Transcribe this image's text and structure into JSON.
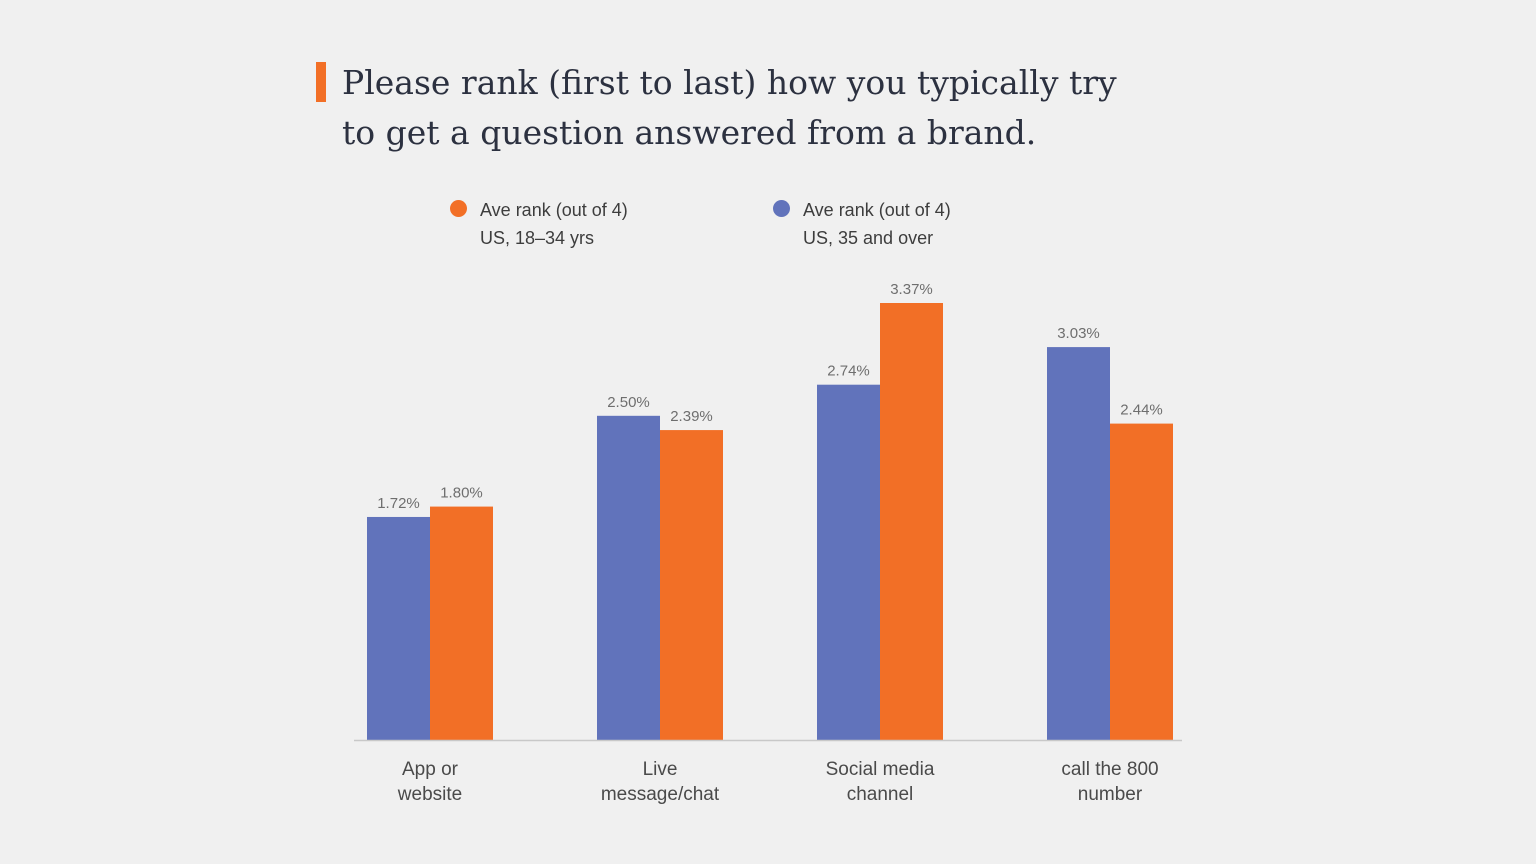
{
  "title_lines": [
    "Please rank (first to last) how you typically try",
    "to get a question answered from a brand."
  ],
  "colors": {
    "accent": "#f26f26",
    "series_18_34": "#f26f26",
    "series_35_over": "#6173bb",
    "axis": "#c8c8c8"
  },
  "legend": [
    {
      "line1": "Ave rank (out of 4)",
      "line2": "US, 18–34 yrs",
      "color": "#f26f26"
    },
    {
      "line1": "Ave rank (out of 4)",
      "line2": "US, 35 and over",
      "color": "#6173bb"
    }
  ],
  "chart_data": {
    "type": "bar",
    "title": "Please rank (first to last) how you typically try to get a question answered from a brand.",
    "categories": [
      [
        "App or",
        "website"
      ],
      [
        "Live",
        "message/chat"
      ],
      [
        "Social media",
        "channel"
      ],
      [
        "call the 800",
        "number"
      ]
    ],
    "series": [
      {
        "name": "Ave rank (out of 4) US, 35 and over",
        "color": "#6173bb",
        "values": [
          1.72,
          2.5,
          2.74,
          3.03
        ],
        "labels": [
          "1.72%",
          "2.50%",
          "2.74%",
          "3.03%"
        ]
      },
      {
        "name": "Ave rank (out of 4) US, 18–34 yrs",
        "color": "#f26f26",
        "values": [
          1.8,
          2.39,
          3.37,
          2.44
        ],
        "labels": [
          "1.80%",
          "2.39%",
          "3.37%",
          "2.44%"
        ]
      }
    ],
    "ylim": [
      0,
      3.37
    ],
    "grid": false,
    "legend_position": "top"
  }
}
